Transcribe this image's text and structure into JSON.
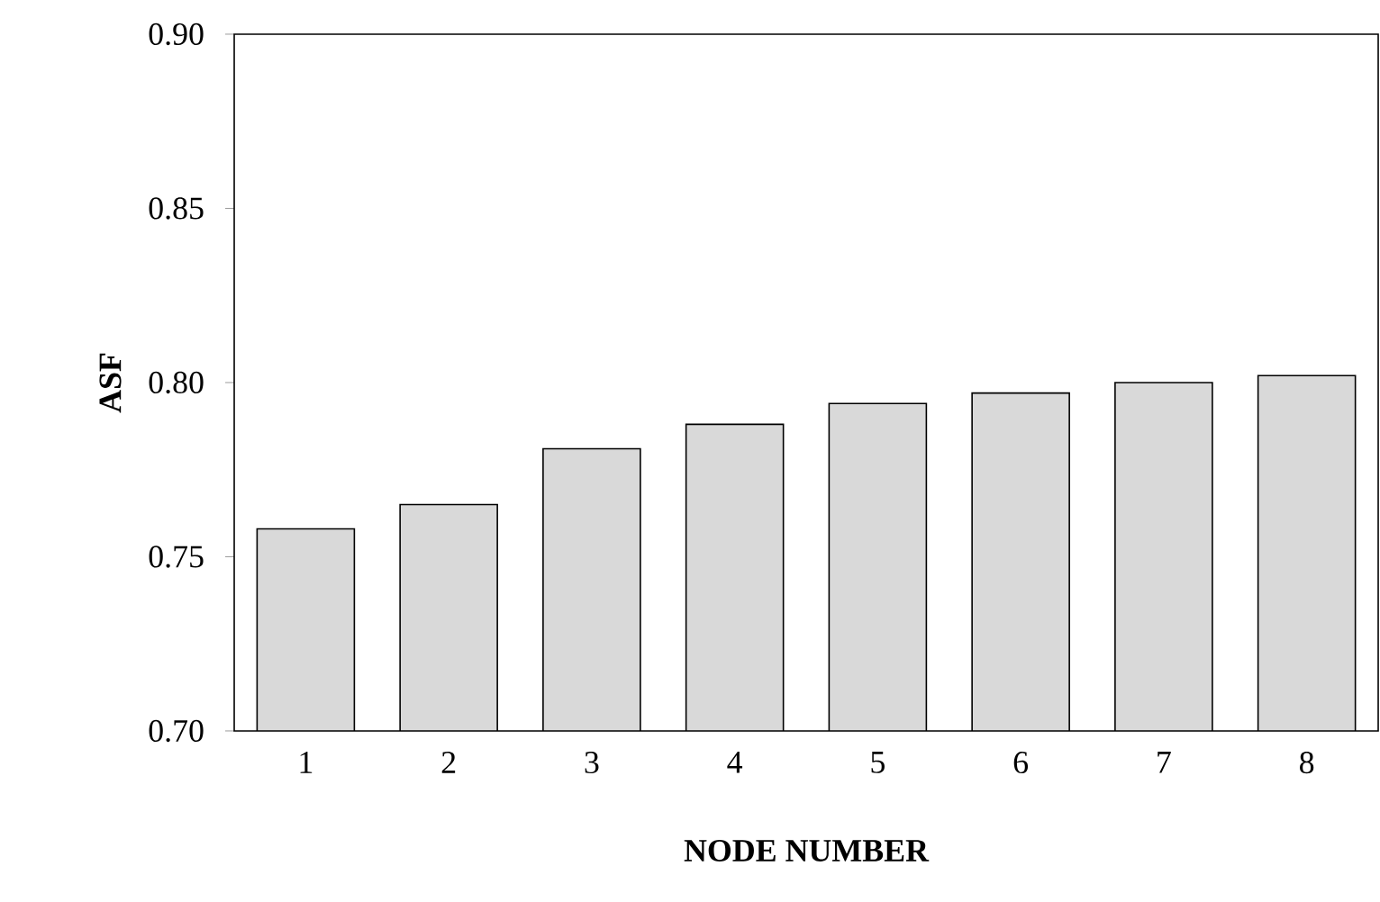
{
  "chart_data": {
    "type": "bar",
    "xlabel": "NODE NUMBER",
    "ylabel": "ASF",
    "categories": [
      "1",
      "2",
      "3",
      "4",
      "5",
      "6",
      "7",
      "8"
    ],
    "values": [
      0.758,
      0.765,
      0.781,
      0.788,
      0.794,
      0.797,
      0.8,
      0.802
    ],
    "color": "#d9d9d9",
    "ylim": [
      0.7,
      0.9
    ],
    "yticks": [
      {
        "value": 0.7,
        "label": "0.70"
      },
      {
        "value": 0.75,
        "label": "0.75"
      },
      {
        "value": 0.8,
        "label": "0.80"
      },
      {
        "value": 0.85,
        "label": "0.85"
      },
      {
        "value": 0.9,
        "label": "0.90"
      }
    ],
    "grid": false
  }
}
